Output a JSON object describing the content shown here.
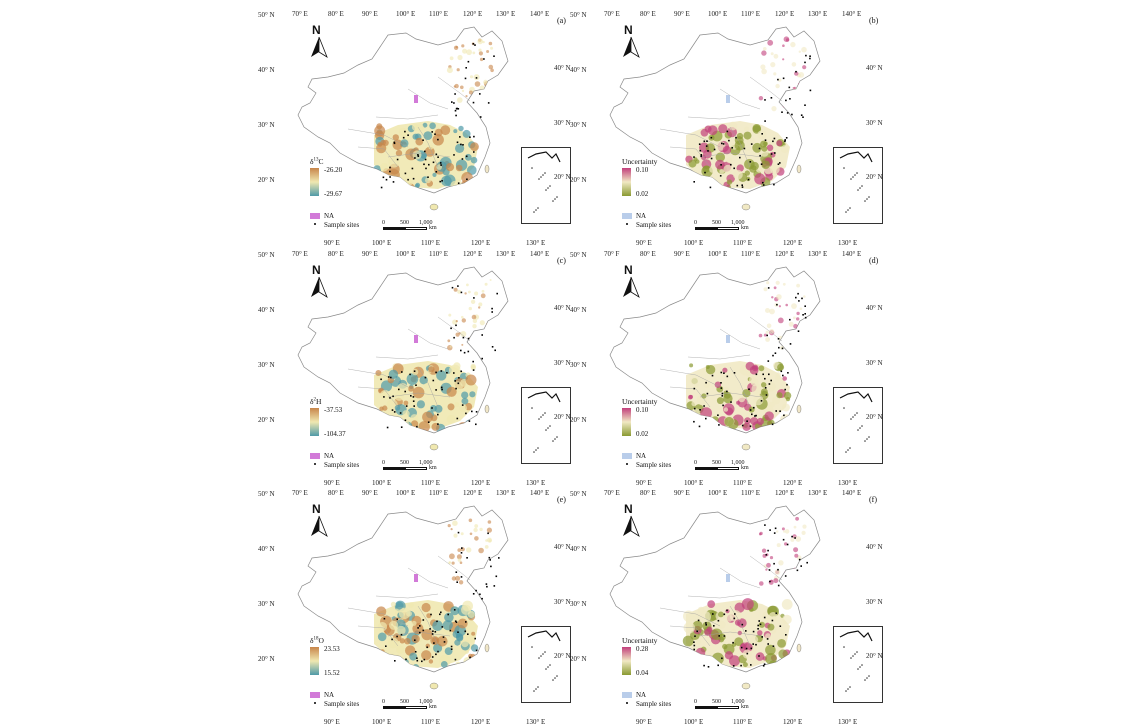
{
  "panels": [
    {
      "id": "a",
      "label": "(a)",
      "color_scheme": "isotope",
      "top_lon": [
        "70° E",
        "80° E",
        "90° E",
        "100° E",
        "110° E",
        "120° E",
        "130° E",
        "140° E"
      ],
      "bottom_lon": [
        "90° E",
        "100° E",
        "110° E",
        "120° E",
        "130° E"
      ],
      "left_lat": [
        "50° N",
        "40° N",
        "30° N",
        "20° N"
      ],
      "right_lat": [
        "40° N",
        "30° N",
        "20° N"
      ],
      "legend": {
        "title_main": "δ",
        "title_sup": "13",
        "title_tail": "C",
        "max": "-26.20",
        "min": "-29.67",
        "na": "NA",
        "sites": "Sample sites",
        "na_color": "#d27ad8"
      },
      "scale": {
        "s0": "0",
        "s1": "500",
        "s2": "1,000",
        "unit": "km"
      }
    },
    {
      "id": "b",
      "label": "(b)",
      "color_scheme": "uncertainty",
      "top_lon": [
        "70° E",
        "80° E",
        "90° E",
        "100° E",
        "110° E",
        "120° E",
        "130° E",
        "140° E"
      ],
      "bottom_lon": [
        "90° E",
        "100° E",
        "110° E",
        "120° E",
        "130° E"
      ],
      "left_lat": [
        "50° N",
        "40° N",
        "30° N",
        "20° N"
      ],
      "right_lat": [
        "40° N",
        "30° N",
        "20° N"
      ],
      "legend": {
        "title_main": "Uncertainty",
        "title_sup": "",
        "title_tail": "",
        "max": "0.10",
        "min": "0.02",
        "na": "NA",
        "sites": "Sample sites",
        "na_color": "#b9cdea"
      },
      "scale": {
        "s0": "0",
        "s1": "500",
        "s2": "1,000",
        "unit": "km"
      }
    },
    {
      "id": "c",
      "label": "(c)",
      "color_scheme": "isotope",
      "top_lon": [
        "70° E",
        "80° E",
        "90° E",
        "100° E",
        "110° E",
        "120° E",
        "130° E",
        "140° E"
      ],
      "bottom_lon": [
        "90° E",
        "100° E",
        "110° E",
        "120° E",
        "130° E"
      ],
      "left_lat": [
        "50° N",
        "40° N",
        "30° N",
        "20° N"
      ],
      "right_lat": [
        "40° N",
        "30° N",
        "20° N"
      ],
      "legend": {
        "title_main": "δ",
        "title_sup": "2",
        "title_tail": "H",
        "max": "-37.53",
        "min": "-104.37",
        "na": "NA",
        "sites": "Sample sites",
        "na_color": "#d27ad8"
      },
      "scale": {
        "s0": "0",
        "s1": "500",
        "s2": "1,000",
        "unit": "km"
      }
    },
    {
      "id": "d",
      "label": "(d)",
      "color_scheme": "uncertainty",
      "top_lon": [
        "70° F",
        "80° E",
        "90° E",
        "100° E",
        "110° E",
        "120° E",
        "130° E",
        "140° E"
      ],
      "bottom_lon": [
        "90° E",
        "100° E",
        "110° E",
        "120° E",
        "130° E"
      ],
      "left_lat": [
        "50° N",
        "40° N",
        "30° N",
        "20° N"
      ],
      "right_lat": [
        "40° N",
        "30° N",
        "20° N"
      ],
      "legend": {
        "title_main": "Uncertainty",
        "title_sup": "",
        "title_tail": "",
        "max": "0.10",
        "min": "0.02",
        "na": "NA",
        "sites": "Sample sites",
        "na_color": "#b9cdea"
      },
      "scale": {
        "s0": "0",
        "s1": "500",
        "s2": "1,000",
        "unit": "km"
      }
    },
    {
      "id": "e",
      "label": "(e)",
      "color_scheme": "isotope",
      "top_lon": [
        "70° E",
        "80° E",
        "90° E",
        "100° E",
        "110° E",
        "120° E",
        "130° E",
        "140° E"
      ],
      "bottom_lon": [
        "90° E",
        "100° E",
        "110° E",
        "120° E",
        "130° E"
      ],
      "left_lat": [
        "50° N",
        "40° N",
        "30° N",
        "20° N"
      ],
      "right_lat": [
        "40° N",
        "30° N",
        "20° N"
      ],
      "legend": {
        "title_main": "δ",
        "title_sup": "18",
        "title_tail": "O",
        "max": "23.53",
        "min": "15.52",
        "na": "NA",
        "sites": "Sample sites",
        "na_color": "#d27ad8"
      },
      "scale": {
        "s0": "0",
        "s1": "500",
        "s2": "1,000",
        "unit": "km"
      }
    },
    {
      "id": "f",
      "label": "(f)",
      "color_scheme": "uncertainty",
      "top_lon": [
        "70° E",
        "80° E",
        "90° E",
        "100° E",
        "110° E",
        "120° E",
        "130° E",
        "140° E"
      ],
      "bottom_lon": [
        "90° E",
        "100° E",
        "110° E",
        "120° E",
        "130° E"
      ],
      "left_lat": [
        "50° N",
        "40° N",
        "30° N",
        "20° N"
      ],
      "right_lat": [
        "40° N",
        "30° N",
        "20° N"
      ],
      "legend": {
        "title_main": "Uncertainty",
        "title_sup": "",
        "title_tail": "",
        "max": "0.28",
        "min": "0.04",
        "na": "NA",
        "sites": "Sample sites",
        "na_color": "#b9cdea"
      },
      "scale": {
        "s0": "0",
        "s1": "500",
        "s2": "1,000",
        "unit": "km"
      }
    }
  ],
  "colors": {
    "isotope_high": "#c8864a",
    "isotope_mid": "#f0e8b0",
    "isotope_low": "#4f9aa8",
    "uncertainty_high": "#c2407c",
    "uncertainty_mid": "#f1e9c4",
    "uncertainty_low": "#8a9a32"
  }
}
